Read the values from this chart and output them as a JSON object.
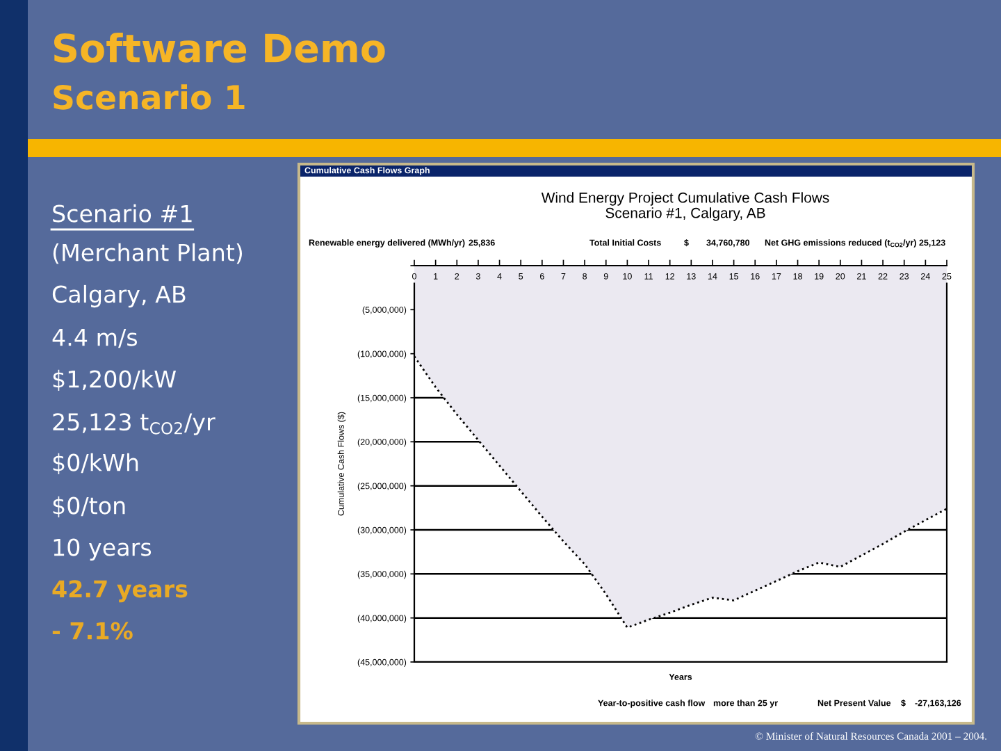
{
  "chart_data": {
    "type": "area",
    "title": "Wind Energy Project Cumulative Cash Flows",
    "subtitle": "Scenario #1, Calgary, AB",
    "xlabel": "Years",
    "ylabel": "Cumulative Cash Flows ($)",
    "x": [
      0,
      1,
      2,
      3,
      4,
      5,
      6,
      7,
      8,
      9,
      10,
      11,
      12,
      13,
      14,
      15,
      16,
      17,
      18,
      19,
      20,
      21,
      22,
      23,
      24,
      25
    ],
    "values": [
      -10300000,
      -13800000,
      -16900000,
      -19800000,
      -22700000,
      -25600000,
      -28500000,
      -31300000,
      -33900000,
      -37300000,
      -41100000,
      -40200000,
      -39400000,
      -38500000,
      -37700000,
      -38000000,
      -36900000,
      -35800000,
      -34700000,
      -33700000,
      -34200000,
      -32900000,
      -31600000,
      -30200000,
      -28900000,
      -27600000
    ],
    "color": "#ebe9f1",
    "line_style": "dotted",
    "grid": "y",
    "xlim": [
      0,
      25
    ],
    "xticks": [
      0,
      1,
      2,
      3,
      4,
      5,
      6,
      7,
      8,
      9,
      10,
      11,
      12,
      13,
      14,
      15,
      16,
      17,
      18,
      19,
      20,
      21,
      22,
      23,
      24,
      25
    ],
    "ylim": [
      -45000000,
      0
    ],
    "yticks": [
      {
        "value": 0,
        "label": null
      },
      {
        "value": -5000000,
        "label": "(5,000,000)"
      },
      {
        "value": -10000000,
        "label": "(10,000,000)"
      },
      {
        "value": -15000000,
        "label": "(15,000,000)"
      },
      {
        "value": -20000000,
        "label": "(20,000,000)"
      },
      {
        "value": -25000000,
        "label": "(25,000,000)"
      },
      {
        "value": -30000000,
        "label": "(30,000,000)"
      },
      {
        "value": -35000000,
        "label": "(35,000,000)"
      },
      {
        "value": -40000000,
        "label": "(40,000,000)"
      },
      {
        "value": -45000000,
        "label": "(45,000,000)"
      }
    ],
    "annotations": [
      "Software Demo",
      "Scenario 1",
      "Scenario #1",
      "(Merchant Plant)",
      "Calgary, AB",
      "4.4 m/s",
      "$1,200/kW",
      "25,123 t$_{CO2}$/yr",
      "$0/kWh",
      "$0/ton",
      "10 years",
      "42.7 years",
      "- 7.1%",
      "Cumulative Cash Flows Graph",
      "Renewable energy delivered (MWh/yr)",
      "25,836",
      "Total Initial Costs",
      "$",
      "34,760,780",
      "Net GHG emissions reduced (t$_{CO2}$/yr)",
      "25,123",
      "Year-to-positive cash flow",
      "more than 25 yr",
      "Net Present Value",
      "$",
      "-27,163,126",
      "© Minister of Natural Resources Canada 2001 – 2004."
    ]
  }
}
